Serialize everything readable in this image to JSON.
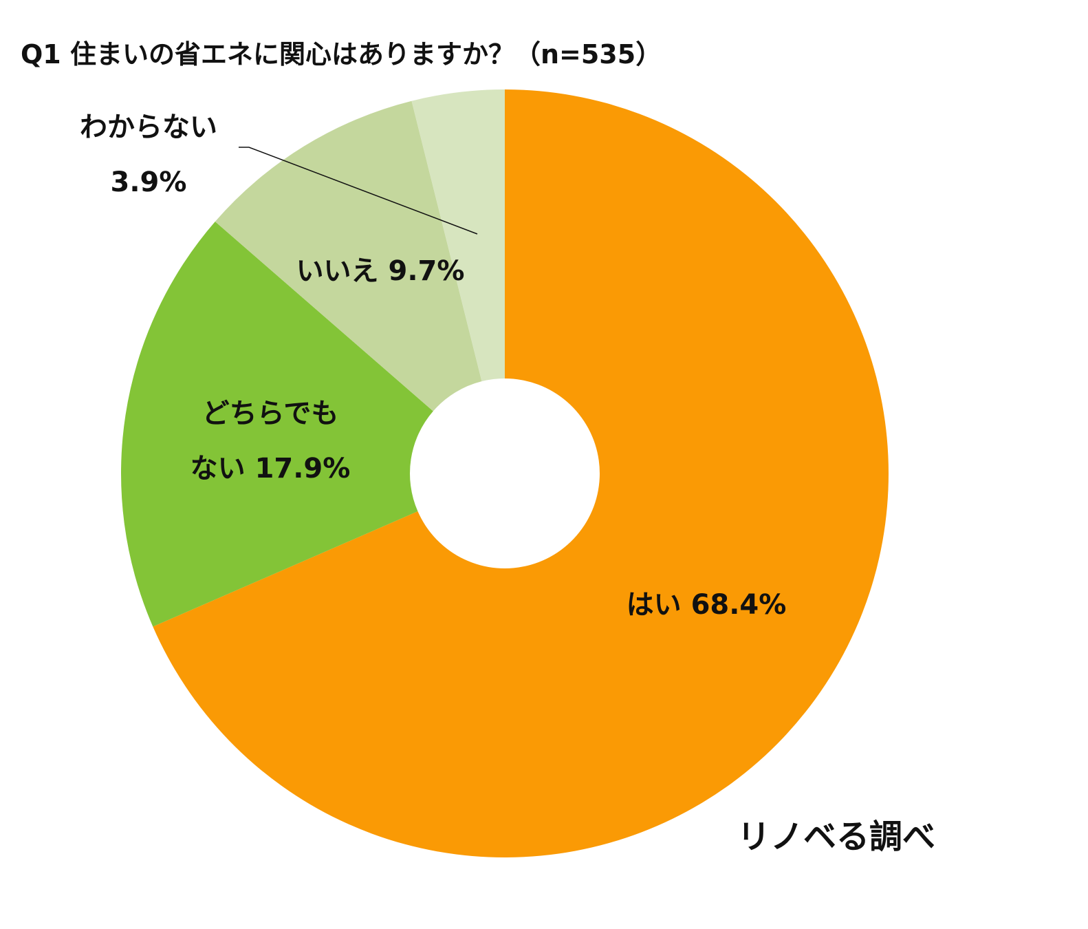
{
  "chart_data": {
    "type": "pie",
    "title": "Q1 住まいの省エネに関心はありますか？（n=535）",
    "donut": true,
    "slices": [
      {
        "label_lines": [
          "はい 68.4%"
        ],
        "value": 68.4,
        "color": "#FA9A05"
      },
      {
        "label_lines": [
          "どちらでも",
          "ない 17.9%"
        ],
        "value": 17.9,
        "color": "#83C437"
      },
      {
        "label_lines": [
          "いいえ 9.7%"
        ],
        "value": 9.7,
        "color": "#C4D79D"
      },
      {
        "label_lines": [
          "わからない",
          "3.9%"
        ],
        "value": 3.9,
        "color": "#D7E5BF"
      }
    ],
    "source": "リノベる調べ"
  }
}
